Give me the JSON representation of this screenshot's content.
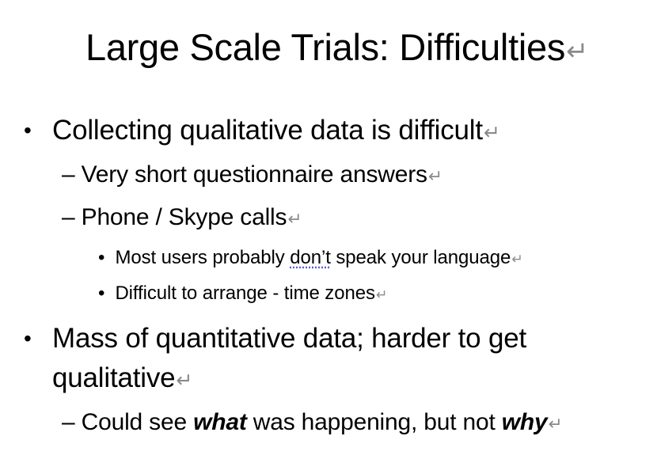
{
  "slide": {
    "title": "Large Scale Trials: Difficulties",
    "paragraph_mark": "↵",
    "bullets": [
      {
        "marker": "•",
        "text": "Collecting qualitative data is difficult",
        "children": [
          {
            "marker": "–",
            "text": "Very short questionnaire answers"
          },
          {
            "marker": "–",
            "text": "Phone / Skype calls",
            "children": [
              {
                "marker": "•",
                "text_before": "Most users probably ",
                "text_flagged": "don’t",
                "text_after": " speak your language"
              },
              {
                "marker": "•",
                "text": "Difficult to arrange - time zones"
              }
            ]
          }
        ]
      },
      {
        "marker": "•",
        "text_line1": "Mass of quantitative data; harder to get",
        "text_line2": "qualitative",
        "children": [
          {
            "marker": "–",
            "text_part1": "Could see ",
            "emphasis1": "what",
            "text_part2": " was happening, but not ",
            "emphasis2": "why"
          }
        ]
      }
    ]
  }
}
